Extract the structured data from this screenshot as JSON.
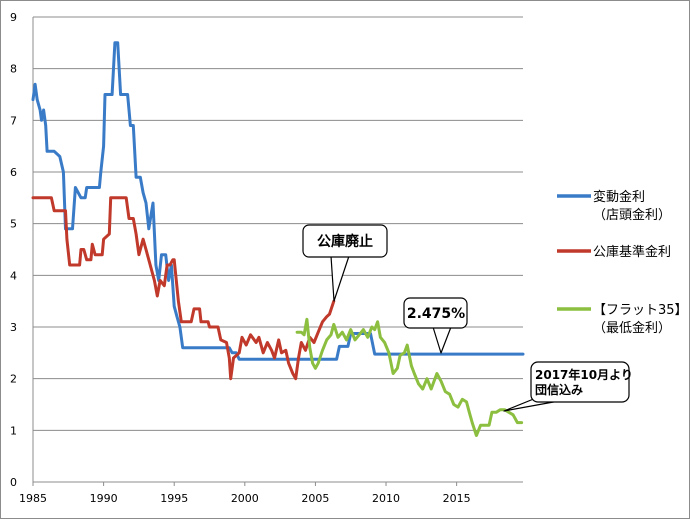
{
  "chart_data": {
    "type": "line",
    "title": "",
    "xlabel": "",
    "ylabel": "",
    "xlim": [
      1985,
      2019.7
    ],
    "ylim": [
      0,
      9
    ],
    "grid": true,
    "legend_position": "right",
    "x_ticks": [
      "1985",
      "1990",
      "1995",
      "2000",
      "2005",
      "2010",
      "2015"
    ],
    "y_ticks": [
      "0",
      "1",
      "2",
      "3",
      "4",
      "5",
      "6",
      "7",
      "8",
      "9"
    ],
    "series": [
      {
        "name": "変動金利\n（店頭金利）",
        "color": "#3a7bc8",
        "points": [
          [
            1985.0,
            7.4
          ],
          [
            1985.15,
            7.7
          ],
          [
            1985.3,
            7.4
          ],
          [
            1985.5,
            7.2
          ],
          [
            1985.6,
            7.0
          ],
          [
            1985.75,
            7.2
          ],
          [
            1985.9,
            6.9
          ],
          [
            1986.0,
            6.4
          ],
          [
            1986.5,
            6.4
          ],
          [
            1986.9,
            6.3
          ],
          [
            1987.15,
            6.0
          ],
          [
            1987.3,
            4.9
          ],
          [
            1987.8,
            4.9
          ],
          [
            1988.0,
            5.7
          ],
          [
            1988.4,
            5.5
          ],
          [
            1988.7,
            5.5
          ],
          [
            1988.8,
            5.7
          ],
          [
            1989.7,
            5.7
          ],
          [
            1989.8,
            6.0
          ],
          [
            1990.0,
            6.5
          ],
          [
            1990.1,
            7.5
          ],
          [
            1990.6,
            7.5
          ],
          [
            1990.8,
            8.5
          ],
          [
            1991.0,
            8.5
          ],
          [
            1991.2,
            7.5
          ],
          [
            1991.7,
            7.5
          ],
          [
            1991.9,
            6.9
          ],
          [
            1992.1,
            6.9
          ],
          [
            1992.3,
            5.9
          ],
          [
            1992.6,
            5.9
          ],
          [
            1992.8,
            5.6
          ],
          [
            1993.0,
            5.4
          ],
          [
            1993.2,
            4.9
          ],
          [
            1993.5,
            5.4
          ],
          [
            1993.7,
            4.2
          ],
          [
            1993.9,
            3.9
          ],
          [
            1994.1,
            4.4
          ],
          [
            1994.4,
            4.4
          ],
          [
            1994.6,
            3.9
          ],
          [
            1994.8,
            4.2
          ],
          [
            1995.0,
            3.4
          ],
          [
            1995.2,
            3.2
          ],
          [
            1995.4,
            3.0
          ],
          [
            1995.6,
            2.6
          ],
          [
            1998.9,
            2.6
          ],
          [
            1999.1,
            2.5
          ],
          [
            1999.4,
            2.5
          ],
          [
            1999.6,
            2.375
          ],
          [
            2006.5,
            2.375
          ],
          [
            2006.7,
            2.625
          ],
          [
            2007.3,
            2.625
          ],
          [
            2007.5,
            2.875
          ],
          [
            2008.9,
            2.875
          ],
          [
            2009.2,
            2.475
          ],
          [
            2019.7,
            2.475
          ]
        ]
      },
      {
        "name": "公庫基準金利",
        "color": "#c0392b",
        "points": [
          [
            1985.0,
            5.5
          ],
          [
            1986.3,
            5.5
          ],
          [
            1986.5,
            5.25
          ],
          [
            1987.3,
            5.25
          ],
          [
            1987.4,
            4.7
          ],
          [
            1987.6,
            4.2
          ],
          [
            1988.3,
            4.2
          ],
          [
            1988.4,
            4.5
          ],
          [
            1988.6,
            4.5
          ],
          [
            1988.8,
            4.3
          ],
          [
            1989.1,
            4.3
          ],
          [
            1989.2,
            4.6
          ],
          [
            1989.4,
            4.4
          ],
          [
            1989.9,
            4.4
          ],
          [
            1990.0,
            4.7
          ],
          [
            1990.4,
            4.8
          ],
          [
            1990.5,
            5.5
          ],
          [
            1991.6,
            5.5
          ],
          [
            1991.8,
            5.1
          ],
          [
            1992.1,
            5.1
          ],
          [
            1992.3,
            4.8
          ],
          [
            1992.5,
            4.4
          ],
          [
            1992.8,
            4.7
          ],
          [
            1993.0,
            4.5
          ],
          [
            1993.3,
            4.2
          ],
          [
            1993.6,
            3.9
          ],
          [
            1993.8,
            3.6
          ],
          [
            1994.0,
            3.9
          ],
          [
            1994.3,
            3.8
          ],
          [
            1994.5,
            4.2
          ],
          [
            1994.7,
            4.2
          ],
          [
            1994.9,
            4.3
          ],
          [
            1995.0,
            4.3
          ],
          [
            1995.3,
            3.5
          ],
          [
            1995.5,
            3.1
          ],
          [
            1996.2,
            3.1
          ],
          [
            1996.4,
            3.35
          ],
          [
            1996.8,
            3.35
          ],
          [
            1996.9,
            3.1
          ],
          [
            1997.4,
            3.1
          ],
          [
            1997.5,
            3.0
          ],
          [
            1998.1,
            3.0
          ],
          [
            1998.3,
            2.75
          ],
          [
            1998.7,
            2.7
          ],
          [
            1998.9,
            2.4
          ],
          [
            1999.0,
            2.0
          ],
          [
            1999.2,
            2.4
          ],
          [
            1999.6,
            2.5
          ],
          [
            1999.8,
            2.8
          ],
          [
            2000.1,
            2.65
          ],
          [
            2000.4,
            2.85
          ],
          [
            2000.8,
            2.7
          ],
          [
            2001.0,
            2.8
          ],
          [
            2001.3,
            2.5
          ],
          [
            2001.6,
            2.7
          ],
          [
            2001.9,
            2.55
          ],
          [
            2002.1,
            2.4
          ],
          [
            2002.4,
            2.75
          ],
          [
            2002.6,
            2.5
          ],
          [
            2002.9,
            2.55
          ],
          [
            2003.1,
            2.3
          ],
          [
            2003.4,
            2.1
          ],
          [
            2003.6,
            2.0
          ],
          [
            2003.8,
            2.4
          ],
          [
            2004.0,
            2.7
          ],
          [
            2004.3,
            2.55
          ],
          [
            2004.6,
            2.8
          ],
          [
            2004.9,
            2.7
          ],
          [
            2005.2,
            2.9
          ],
          [
            2005.5,
            3.1
          ],
          [
            2005.8,
            3.2
          ],
          [
            2006.0,
            3.25
          ],
          [
            2006.3,
            3.5
          ]
        ]
      },
      {
        "name": "【フラット35】\n（最低金利）",
        "color": "#8cbf3f",
        "points": [
          [
            2003.7,
            2.9
          ],
          [
            2004.0,
            2.9
          ],
          [
            2004.2,
            2.85
          ],
          [
            2004.4,
            3.15
          ],
          [
            2004.6,
            2.6
          ],
          [
            2004.8,
            2.3
          ],
          [
            2005.0,
            2.2
          ],
          [
            2005.2,
            2.3
          ],
          [
            2005.5,
            2.55
          ],
          [
            2005.8,
            2.75
          ],
          [
            2006.1,
            2.85
          ],
          [
            2006.3,
            3.05
          ],
          [
            2006.6,
            2.8
          ],
          [
            2006.9,
            2.9
          ],
          [
            2007.2,
            2.75
          ],
          [
            2007.5,
            2.95
          ],
          [
            2007.8,
            2.75
          ],
          [
            2008.1,
            2.85
          ],
          [
            2008.4,
            2.95
          ],
          [
            2008.7,
            2.8
          ],
          [
            2009.0,
            3.0
          ],
          [
            2009.2,
            2.95
          ],
          [
            2009.4,
            3.1
          ],
          [
            2009.6,
            2.8
          ],
          [
            2009.9,
            2.7
          ],
          [
            2010.2,
            2.5
          ],
          [
            2010.5,
            2.1
          ],
          [
            2010.8,
            2.2
          ],
          [
            2011.0,
            2.45
          ],
          [
            2011.3,
            2.5
          ],
          [
            2011.5,
            2.65
          ],
          [
            2011.8,
            2.25
          ],
          [
            2012.0,
            2.1
          ],
          [
            2012.3,
            1.9
          ],
          [
            2012.6,
            1.8
          ],
          [
            2012.9,
            2.0
          ],
          [
            2013.2,
            1.8
          ],
          [
            2013.4,
            1.95
          ],
          [
            2013.6,
            2.1
          ],
          [
            2013.9,
            1.95
          ],
          [
            2014.2,
            1.75
          ],
          [
            2014.5,
            1.7
          ],
          [
            2014.8,
            1.5
          ],
          [
            2015.1,
            1.45
          ],
          [
            2015.4,
            1.6
          ],
          [
            2015.7,
            1.55
          ],
          [
            2015.9,
            1.35
          ],
          [
            2016.1,
            1.15
          ],
          [
            2016.4,
            0.9
          ],
          [
            2016.7,
            1.1
          ],
          [
            2017.0,
            1.1
          ],
          [
            2017.3,
            1.1
          ],
          [
            2017.5,
            1.35
          ],
          [
            2017.8,
            1.35
          ],
          [
            2018.1,
            1.4
          ],
          [
            2018.4,
            1.4
          ],
          [
            2018.7,
            1.35
          ],
          [
            2019.0,
            1.3
          ],
          [
            2019.3,
            1.15
          ],
          [
            2019.6,
            1.15
          ]
        ]
      }
    ],
    "annotations": [
      {
        "text": "公庫廃止"
      },
      {
        "text": "2.475%"
      },
      {
        "text": "2017年10月より\n団信込み"
      }
    ]
  }
}
